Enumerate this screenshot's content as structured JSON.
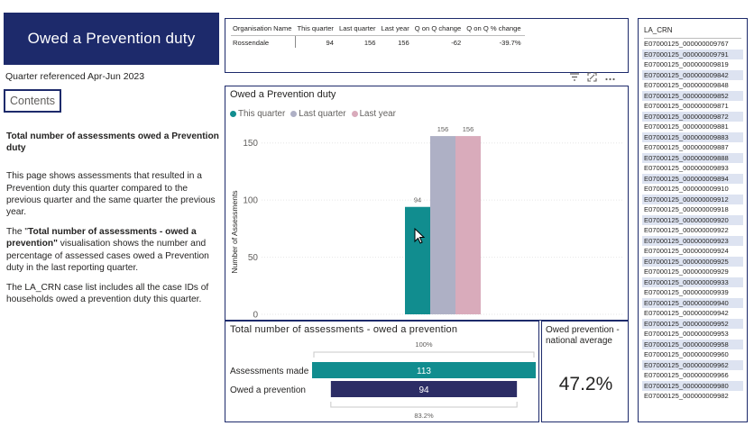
{
  "page": {
    "title": "Owed a Prevention duty",
    "quarter_referenced": "Quarter referenced Apr-Jun 2023",
    "contents_label": "Contents"
  },
  "description": {
    "heading": "Total number of assessments owed a Prevention duty",
    "p1": "This page shows assessments that resulted in a Prevention duty this quarter compared to the previous quarter and the same quarter the previous year.",
    "p2_prefix": "The \"",
    "p2_bold": "Total number of assessments - owed a prevention\"",
    "p2_suffix": " visualisation shows the number and percentage of assessed cases owed a Prevention duty in the last reporting quarter.",
    "p3": "The LA_CRN case list includes all the case IDs of households owed a prevention duty this quarter."
  },
  "summary_table": {
    "headers": [
      "Organisation Name",
      "This quarter",
      "Last quarter",
      "Last year",
      "Q on Q change",
      "Q on Q % change"
    ],
    "row": [
      "Rossendale",
      "94",
      "156",
      "156",
      "-62",
      "-39.7%"
    ]
  },
  "visual_icons": [
    "filter-icon",
    "focus-mode-icon",
    "more-options-icon"
  ],
  "colors": {
    "navy": "#1d2a6b",
    "this_quarter": "#118d8f",
    "last_quarter": "#aeb0c5",
    "last_year": "#d9abbb",
    "assess_made": "#118d8f",
    "owed_prevention": "#2c2d65"
  },
  "chart_data": [
    {
      "type": "bar",
      "title": "Owed a Prevention duty",
      "ylabel": "Number of Assessments",
      "ylim": [
        0,
        160
      ],
      "yticks": [
        0,
        50,
        100,
        150
      ],
      "grid": true,
      "legend_position": "top-left",
      "series": [
        {
          "name": "This quarter",
          "values": [
            94
          ]
        },
        {
          "name": "Last quarter",
          "values": [
            156
          ]
        },
        {
          "name": "Last year",
          "values": [
            156
          ]
        }
      ],
      "data_labels": [
        "94",
        "156",
        "156"
      ]
    },
    {
      "type": "bar",
      "orientation": "horizontal",
      "title": "Total number of assessments - owed a prevention",
      "categories": [
        "Assessments made",
        "Owed a prevention"
      ],
      "values": [
        113,
        94
      ],
      "percent_labels": [
        "100%",
        "83.2%"
      ]
    }
  ],
  "card": {
    "title": "Owed prevention -national average",
    "value": "47.2%"
  },
  "case_list": {
    "header": "LA_CRN",
    "items": [
      "E07000125_000000009767",
      "E07000125_000000009791",
      "E07000125_000000009819",
      "E07000125_000000009842",
      "E07000125_000000009848",
      "E07000125_000000009852",
      "E07000125_000000009871",
      "E07000125_000000009872",
      "E07000125_000000009881",
      "E07000125_000000009883",
      "E07000125_000000009887",
      "E07000125_000000009888",
      "E07000125_000000009893",
      "E07000125_000000009894",
      "E07000125_000000009910",
      "E07000125_000000009912",
      "E07000125_000000009918",
      "E07000125_000000009920",
      "E07000125_000000009922",
      "E07000125_000000009923",
      "E07000125_000000009924",
      "E07000125_000000009925",
      "E07000125_000000009929",
      "E07000125_000000009933",
      "E07000125_000000009939",
      "E07000125_000000009940",
      "E07000125_000000009942",
      "E07000125_000000009952",
      "E07000125_000000009953",
      "E07000125_000000009958",
      "E07000125_000000009960",
      "E07000125_000000009962",
      "E07000125_000000009966",
      "E07000125_000000009980",
      "E07000125_000000009982"
    ]
  }
}
